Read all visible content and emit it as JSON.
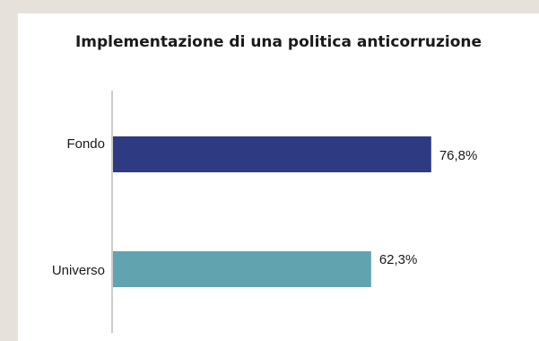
{
  "chart_data": {
    "type": "bar",
    "orientation": "horizontal",
    "title": "Implementazione di una politica anticorruzione",
    "categories": [
      "Fondo",
      "Universo"
    ],
    "values": [
      76.8,
      62.3
    ],
    "value_labels": [
      "76,8%",
      "62,3%"
    ],
    "colors": [
      "#2e3b82",
      "#62a3b0"
    ],
    "xlim": [
      0,
      100
    ],
    "xlabel": "",
    "ylabel": "",
    "grid": false,
    "legend": "none"
  }
}
